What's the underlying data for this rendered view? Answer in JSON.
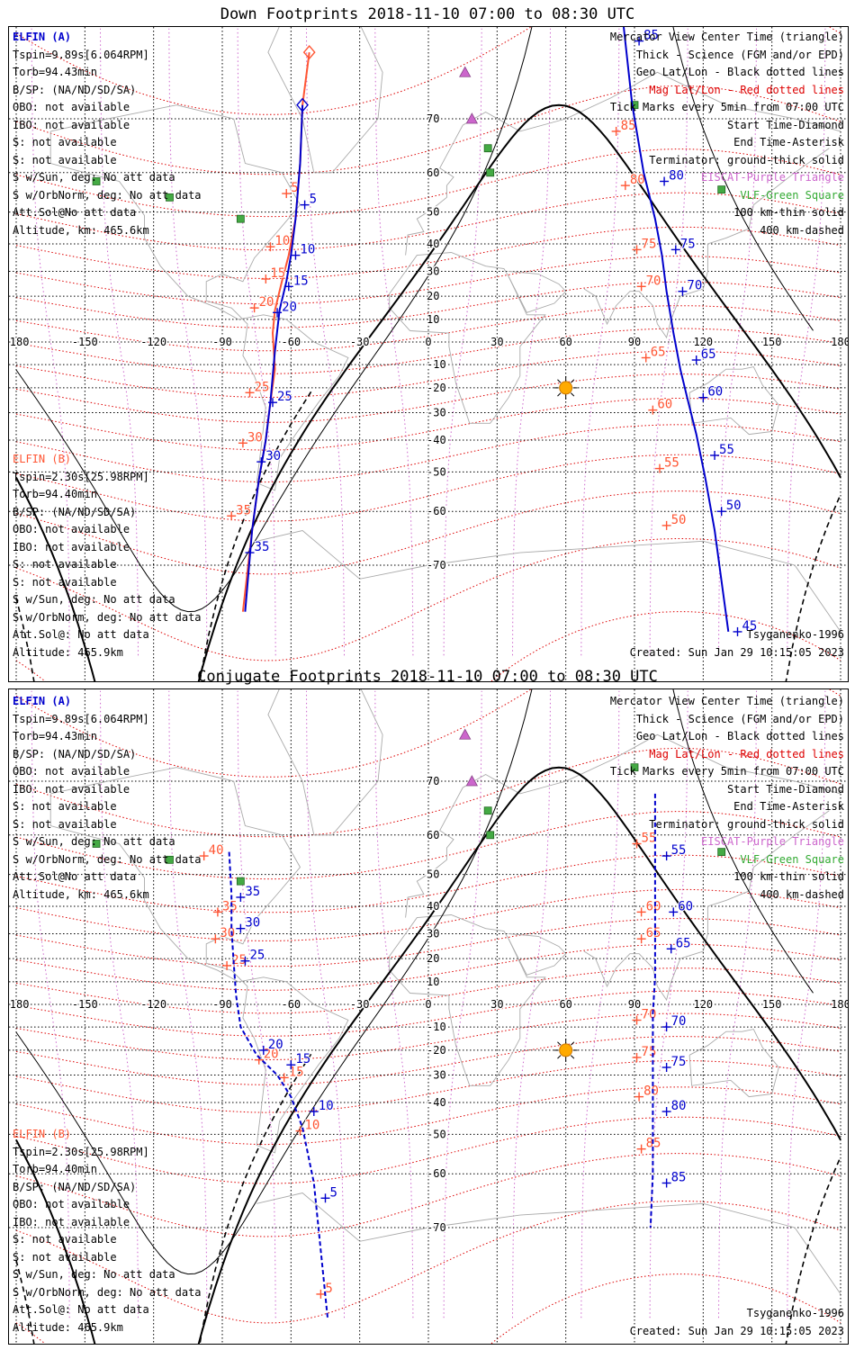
{
  "panels": [
    {
      "title": "Down Footprints 2018-11-10 07:00 to 08:30 UTC",
      "elfin_a": {
        "name": "ELFIN (A)",
        "lines": [
          "Tspin=9.89s[6.064RPM]",
          "Torb=94.43min",
          "B/SP: (NA/ND/SD/SA)",
          "OBO: not available",
          "IBO: not available",
          "S: not available",
          "S: not available",
          "S w/Sun, deg: No att data",
          "S w/OrbNorm, deg: No att data",
          "Att.Sol@No att data",
          "Altitude, km: 465.6km"
        ]
      },
      "elfin_b": {
        "name": "ELFIN (B)",
        "lines": [
          "Tspin=2.30s[25.98RPM]",
          "Torb=94.40min",
          "B/SP: (NA/ND/SD/SA)",
          "OBO: not available",
          "IBO: not available",
          "S: not available",
          "S: not available",
          "S w/Sun, deg: No att data",
          "S w/OrbNorm, deg: No att data",
          "Att.Sol@: No att data",
          "Altitude: 465.9km"
        ]
      },
      "legend": [
        {
          "text": "Mercator View Center Time (triangle)",
          "color": "#000000"
        },
        {
          "text": "Thick - Science (FGM and/or EPD)",
          "color": "#000000"
        },
        {
          "text": "Geo Lat/Lon - Black dotted lines",
          "color": "#000000"
        },
        {
          "text": "Mag Lat/Lon - Red dotted lines",
          "color": "#dd0000"
        },
        {
          "text": "Tick Marks every 5min from 07:00 UTC",
          "color": "#000000"
        },
        {
          "text": "Start Time-Diamond",
          "color": "#000000"
        },
        {
          "text": "End Time-Asterisk",
          "color": "#000000"
        },
        {
          "text": "Terminator: ground-thick solid",
          "color": "#000000"
        },
        {
          "text": "EISCAT-Purple Triangle",
          "color": "#cc66cc"
        },
        {
          "text": "VLF-Green Square",
          "color": "#33aa33"
        },
        {
          "text": "100 km-thin solid",
          "color": "#000000"
        },
        {
          "text": "400 km-dashed",
          "color": "#000000"
        }
      ],
      "model": "Tsyganenko-1996",
      "created": "Created: Sun Jan 29 10:15:05 2023",
      "track_a1": {
        "color": "#0000cc",
        "labels": [
          {
            "t": "5",
            "lon": -54,
            "lat": 52
          },
          {
            "t": "10",
            "lon": -58,
            "lat": 36
          },
          {
            "t": "15",
            "lon": -61,
            "lat": 24
          },
          {
            "t": "20",
            "lon": -66,
            "lat": 13
          },
          {
            "t": "25",
            "lon": -68,
            "lat": -26
          },
          {
            "t": "30",
            "lon": -73,
            "lat": -47
          },
          {
            "t": "35",
            "lon": -78,
            "lat": -68
          }
        ],
        "points": [
          [
            -55,
            72
          ],
          [
            -56,
            62
          ],
          [
            -58,
            48
          ],
          [
            -60,
            36
          ],
          [
            -62,
            26
          ],
          [
            -65,
            14
          ],
          [
            -67,
            -4
          ],
          [
            -69,
            -26
          ],
          [
            -71,
            -40
          ],
          [
            -74,
            -52
          ],
          [
            -77,
            -64
          ],
          [
            -80,
            -76
          ]
        ]
      },
      "track_b1": {
        "color": "#ff5533",
        "labels": [
          {
            "t": "5",
            "lon": -62,
            "lat": 55
          },
          {
            "t": "10",
            "lon": -69,
            "lat": 39
          },
          {
            "t": "15",
            "lon": -71,
            "lat": 27
          },
          {
            "t": "20",
            "lon": -76,
            "lat": 15
          },
          {
            "t": "25",
            "lon": -78,
            "lat": -22
          },
          {
            "t": "30",
            "lon": -81,
            "lat": -41
          },
          {
            "t": "35",
            "lon": -86,
            "lat": -61
          }
        ],
        "points": [
          [
            -52,
            78
          ],
          [
            -55,
            72
          ],
          [
            -56,
            62
          ],
          [
            -58,
            48
          ],
          [
            -61,
            36
          ],
          [
            -64,
            26
          ],
          [
            -67,
            14
          ],
          [
            -68,
            4
          ],
          [
            -67,
            -12
          ],
          [
            -69,
            -26
          ],
          [
            -71,
            -40
          ],
          [
            -74,
            -52
          ],
          [
            -77,
            -64
          ],
          [
            -81,
            -76
          ]
        ]
      },
      "track_a2": {
        "color": "#0000cc",
        "labels": [
          {
            "t": "85",
            "lon": 92,
            "lat": 79
          },
          {
            "t": "80",
            "lon": 103,
            "lat": 58
          },
          {
            "t": "75",
            "lon": 108,
            "lat": 38
          },
          {
            "t": "70",
            "lon": 111,
            "lat": 22
          },
          {
            "t": "65",
            "lon": 117,
            "lat": -8
          },
          {
            "t": "60",
            "lon": 120,
            "lat": -24
          },
          {
            "t": "55",
            "lon": 125,
            "lat": -45
          },
          {
            "t": "50",
            "lon": 128,
            "lat": -60
          },
          {
            "t": "45",
            "lon": 135,
            "lat": -78
          }
        ],
        "points": [
          [
            84,
            82
          ],
          [
            89,
            72
          ],
          [
            94,
            60
          ],
          [
            99,
            48
          ],
          [
            102,
            36
          ],
          [
            104,
            22
          ],
          [
            107,
            4
          ],
          [
            110,
            -12
          ],
          [
            113,
            -24
          ],
          [
            117,
            -38
          ],
          [
            121,
            -52
          ],
          [
            125,
            -64
          ],
          [
            131,
            -78
          ]
        ]
      },
      "track_b2": {
        "color": "#ff5533",
        "labels": [
          {
            "t": "85",
            "lon": 82,
            "lat": 68
          },
          {
            "t": "80",
            "lon": 86,
            "lat": 57
          },
          {
            "t": "75",
            "lon": 91,
            "lat": 38
          },
          {
            "t": "70",
            "lon": 93,
            "lat": 24
          },
          {
            "t": "65",
            "lon": 95,
            "lat": -7
          },
          {
            "t": "60",
            "lon": 98,
            "lat": -29
          },
          {
            "t": "55",
            "lon": 101,
            "lat": -49
          },
          {
            "t": "50",
            "lon": 104,
            "lat": -63
          }
        ],
        "points": []
      }
    },
    {
      "title": "Conjugate Footprints 2018-11-10 07:00 to 08:30 UTC",
      "elfin_a": {
        "name": "ELFIN (A)",
        "lines": [
          "Tspin=9.89s[6.064RPM]",
          "Torb=94.43min",
          "B/SP: (NA/ND/SD/SA)",
          "OBO: not available",
          "IBO: not available",
          "S: not available",
          "S: not available",
          "S w/Sun, deg: No att data",
          "S w/OrbNorm, deg: No att data",
          "Att.Sol@No att data",
          "Altitude, km: 465.6km"
        ]
      },
      "elfin_b": {
        "name": "ELFIN (B)",
        "lines": [
          "Tspin=2.30s[25.98RPM]",
          "Torb=94.40min",
          "B/SP: (NA/ND/SD/SA)",
          "OBO: not available",
          "IBO: not available",
          "S: not available",
          "S: not available",
          "S w/Sun, deg: No att data",
          "S w/OrbNorm, deg: No att data",
          "Att.Sol@: No att data",
          "Altitude: 465.9km"
        ]
      },
      "legend": [
        {
          "text": "Mercator View Center Time (triangle)",
          "color": "#000000"
        },
        {
          "text": "Thick - Science (FGM and/or EPD)",
          "color": "#000000"
        },
        {
          "text": "Geo Lat/Lon - Black dotted lines",
          "color": "#000000"
        },
        {
          "text": "Mag Lat/Lon - Red dotted lines",
          "color": "#dd0000"
        },
        {
          "text": "Tick Marks every 5min from 07:00 UTC",
          "color": "#000000"
        },
        {
          "text": "Start Time-Diamond",
          "color": "#000000"
        },
        {
          "text": "End Time-Asterisk",
          "color": "#000000"
        },
        {
          "text": "Terminator: ground-thick solid",
          "color": "#000000"
        },
        {
          "text": "EISCAT-Purple Triangle",
          "color": "#cc66cc"
        },
        {
          "text": "VLF-Green Square",
          "color": "#33aa33"
        },
        {
          "text": "100 km-thin solid",
          "color": "#000000"
        },
        {
          "text": "400 km-dashed",
          "color": "#000000"
        }
      ],
      "model": "Tsyganenko-1996",
      "created": "Created: Sun Jan 29 10:15:05 2023",
      "track_a1": {
        "color": "#0000cc",
        "labels": [
          {
            "t": "35",
            "lon": -82,
            "lat": 43
          },
          {
            "t": "30",
            "lon": -82,
            "lat": 32
          },
          {
            "t": "25",
            "lon": -80,
            "lat": 19
          },
          {
            "t": "20",
            "lon": -72,
            "lat": -20
          },
          {
            "t": "15",
            "lon": -60,
            "lat": -26
          },
          {
            "t": "10",
            "lon": -50,
            "lat": -43
          },
          {
            "t": "5",
            "lon": -45,
            "lat": -65
          }
        ],
        "points": [
          [
            -87,
            56
          ],
          [
            -86,
            44
          ],
          [
            -86,
            32
          ],
          [
            -85,
            18
          ],
          [
            -84,
            4
          ],
          [
            -82,
            -10
          ],
          [
            -75,
            -22
          ],
          [
            -66,
            -30
          ],
          [
            -60,
            -38
          ],
          [
            -55,
            -48
          ],
          [
            -50,
            -62
          ],
          [
            -44,
            -80
          ]
        ]
      },
      "track_b1": {
        "color": "#ff5533",
        "labels": [
          {
            "t": "40",
            "lon": -98,
            "lat": 55
          },
          {
            "t": "35",
            "lon": -92,
            "lat": 38
          },
          {
            "t": "30",
            "lon": -93,
            "lat": 28
          },
          {
            "t": "25",
            "lon": -88,
            "lat": 17
          },
          {
            "t": "20",
            "lon": -74,
            "lat": -24
          },
          {
            "t": "15",
            "lon": -63,
            "lat": -31
          },
          {
            "t": "10",
            "lon": -56,
            "lat": -49
          },
          {
            "t": "5",
            "lon": -47,
            "lat": -78
          }
        ],
        "points": []
      },
      "track_a2": {
        "color": "#0000cc",
        "labels": [
          {
            "t": "55",
            "lon": 104,
            "lat": 55
          },
          {
            "t": "60",
            "lon": 107,
            "lat": 38
          },
          {
            "t": "65",
            "lon": 106,
            "lat": 24
          },
          {
            "t": "70",
            "lon": 104,
            "lat": -10
          },
          {
            "t": "75",
            "lon": 104,
            "lat": -27
          },
          {
            "t": "80",
            "lon": 104,
            "lat": -43
          },
          {
            "t": "85",
            "lon": 104,
            "lat": -62
          }
        ],
        "points": [
          [
            99,
            68
          ],
          [
            99,
            56
          ],
          [
            99,
            42
          ],
          [
            99,
            28
          ],
          [
            99,
            12
          ],
          [
            98,
            -4
          ],
          [
            98,
            -18
          ],
          [
            98,
            -32
          ],
          [
            98,
            -46
          ],
          [
            98,
            -60
          ],
          [
            97,
            -70
          ]
        ]
      },
      "track_b2": {
        "color": "#ff5533",
        "labels": [
          {
            "t": "55",
            "lon": 91,
            "lat": 58
          },
          {
            "t": "60",
            "lon": 93,
            "lat": 38
          },
          {
            "t": "65",
            "lon": 93,
            "lat": 28
          },
          {
            "t": "70",
            "lon": 91,
            "lat": -7
          },
          {
            "t": "75",
            "lon": 91,
            "lat": -23
          },
          {
            "t": "80",
            "lon": 92,
            "lat": -38
          },
          {
            "t": "85",
            "lon": 93,
            "lat": -54
          }
        ],
        "points": []
      }
    }
  ],
  "axes": {
    "lon_ticks": [
      "-180",
      "-150",
      "-120",
      "-90",
      "-60",
      "-30",
      "0",
      "30",
      "60",
      "90",
      "120",
      "150",
      "180"
    ],
    "lat_ticks": [
      "70",
      "60",
      "50",
      "40",
      "30",
      "20",
      "10",
      "0",
      "-10",
      "-20",
      "-30",
      "-40",
      "-50",
      "-60",
      "-70"
    ]
  },
  "markers": {
    "sun_lon": 60,
    "sun_lat": -20,
    "eiscat": [
      [
        16,
        76
      ],
      [
        19,
        70
      ]
    ],
    "vlf": [
      [
        -145,
        58
      ],
      [
        -113,
        54
      ],
      [
        -82,
        48
      ],
      [
        26,
        65
      ],
      [
        27,
        60
      ],
      [
        90,
        72
      ],
      [
        128,
        56
      ]
    ]
  },
  "colors": {
    "elfin_a": "#0000cc",
    "elfin_b": "#ff5533",
    "mag_grid": "#dd0000",
    "geo_grid": "#000000",
    "eiscat": "#cc66cc",
    "vlf": "#44aa44",
    "sun": "#ffaa00"
  }
}
